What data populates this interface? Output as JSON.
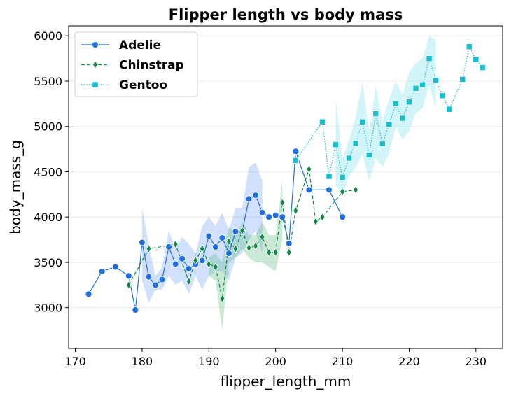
{
  "chart_data": {
    "type": "line",
    "title": "Flipper length vs body mass",
    "xlabel": "flipper_length_mm",
    "ylabel": "body_mass_g",
    "xlim": [
      169,
      234
    ],
    "ylim": [
      2550,
      6110
    ],
    "xticks": [
      170,
      180,
      190,
      200,
      210,
      220,
      230
    ],
    "yticks": [
      3000,
      3500,
      4000,
      4500,
      5000,
      5500,
      6000
    ],
    "grid": "horizontal",
    "legend_position": "top-left",
    "series": [
      {
        "name": "Adelie",
        "color": "#1f6fe0",
        "band_color": "#7aa7f5",
        "marker": "circle",
        "line_style": "solid",
        "x": [
          172,
          174,
          176,
          178,
          179,
          180,
          181,
          182,
          183,
          184,
          185,
          186,
          187,
          188,
          189,
          190,
          191,
          192,
          193,
          194,
          195,
          196,
          197,
          198,
          199,
          200,
          201,
          202,
          203,
          205,
          208,
          210
        ],
        "y": [
          3150,
          3400,
          3450,
          3350,
          2975,
          3720,
          3340,
          3250,
          3310,
          3670,
          3480,
          3540,
          3430,
          3480,
          3520,
          3790,
          3670,
          3770,
          3600,
          3840,
          3840,
          4200,
          4240,
          4050,
          4000,
          4020,
          4000,
          3710,
          4725,
          4300,
          4300,
          4000
        ],
        "lo": [
          null,
          null,
          null,
          null,
          null,
          3300,
          3050,
          3200,
          3200,
          3350,
          3250,
          3300,
          3150,
          3350,
          3200,
          3350,
          3400,
          3400,
          3300,
          3550,
          3600,
          3750,
          3850,
          3600,
          null,
          null,
          null,
          null,
          null,
          null,
          null,
          null
        ],
        "hi": [
          null,
          null,
          null,
          null,
          null,
          4100,
          3700,
          3350,
          3450,
          3850,
          3650,
          3780,
          3700,
          3600,
          3900,
          4000,
          3900,
          4050,
          3850,
          4100,
          4100,
          4550,
          4600,
          4400,
          null,
          null,
          null,
          null,
          null,
          null,
          null,
          null
        ]
      },
      {
        "name": "Chinstrap",
        "color": "#0e8a45",
        "band_color": "#63c08a",
        "marker": "diamond",
        "line_style": "dashed",
        "x": [
          178,
          181,
          185,
          187,
          188,
          189,
          190,
          191,
          192,
          193,
          194,
          195,
          196,
          197,
          198,
          199,
          200,
          201,
          202,
          203,
          205,
          206,
          207,
          210,
          212
        ],
        "y": [
          3250,
          3650,
          3700,
          3290,
          3520,
          3650,
          3480,
          3450,
          3100,
          3730,
          3650,
          3850,
          3660,
          3680,
          3780,
          3610,
          3610,
          4160,
          3610,
          4070,
          4530,
          3950,
          4000,
          4280,
          4300
        ],
        "lo": [
          null,
          null,
          3650,
          null,
          3450,
          null,
          3350,
          3300,
          2750,
          3500,
          3550,
          3650,
          3550,
          3500,
          3500,
          3450,
          3400,
          3750,
          null,
          null,
          null,
          null,
          null,
          null,
          null
        ],
        "hi": [
          null,
          null,
          3750,
          null,
          3600,
          null,
          3550,
          3600,
          3500,
          3900,
          3800,
          3950,
          3800,
          3800,
          3950,
          3800,
          3800,
          4400,
          null,
          null,
          null,
          null,
          null,
          null,
          null
        ]
      },
      {
        "name": "Gentoo",
        "color": "#17becf",
        "band_color": "#7fe3ee",
        "marker": "square",
        "line_style": "dotted",
        "x": [
          203,
          207,
          208,
          209,
          210,
          211,
          212,
          213,
          214,
          215,
          216,
          217,
          218,
          219,
          220,
          221,
          222,
          223,
          224,
          225,
          226,
          228,
          229,
          230,
          231
        ],
        "y": [
          4625,
          5050,
          4450,
          4800,
          4440,
          4650,
          4815,
          5050,
          4685,
          5140,
          4810,
          5020,
          5250,
          5090,
          5270,
          5420,
          5460,
          5750,
          5510,
          5340,
          5190,
          5520,
          5880,
          5740,
          5650
        ],
        "lo": [
          null,
          null,
          null,
          4350,
          4250,
          4450,
          4550,
          4700,
          4400,
          4650,
          4550,
          4700,
          5000,
          4850,
          4950,
          5150,
          5200,
          5450,
          5200,
          null,
          null,
          null,
          null,
          null,
          null
        ],
        "hi": [
          null,
          null,
          null,
          5300,
          4650,
          4850,
          5100,
          5500,
          4950,
          5450,
          5050,
          5300,
          5500,
          5350,
          5600,
          5700,
          5750,
          6000,
          5950,
          null,
          null,
          null,
          null,
          null,
          null
        ]
      }
    ]
  }
}
